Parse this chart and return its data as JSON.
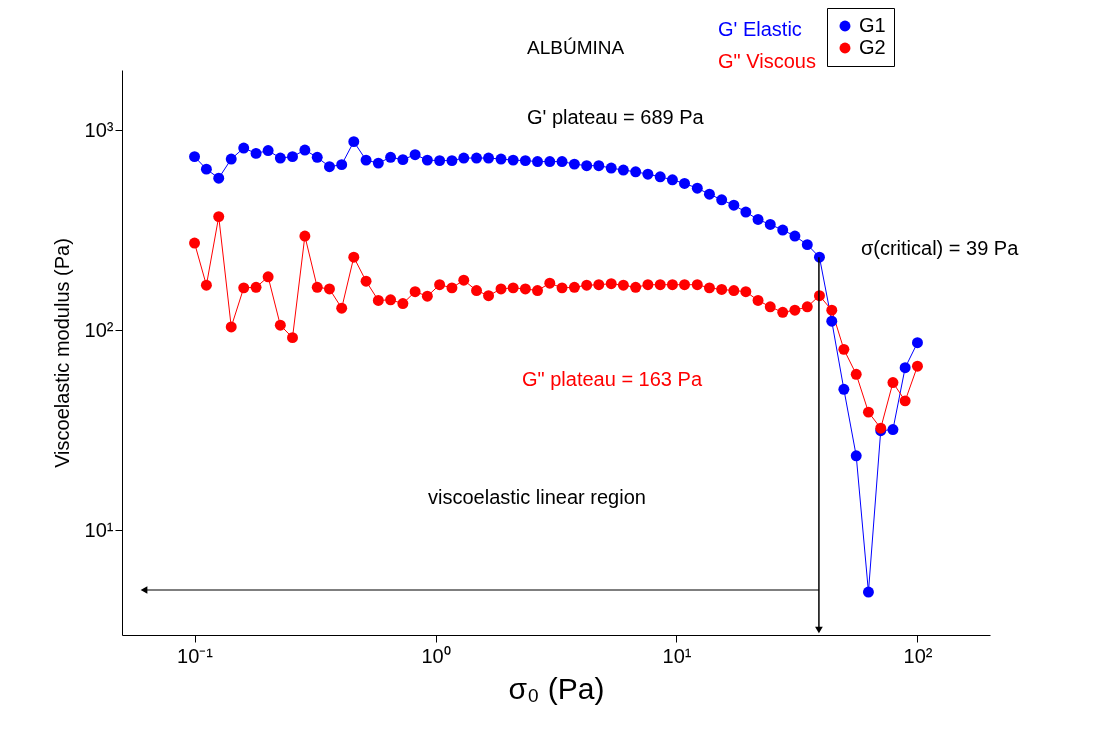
{
  "chart_data": {
    "type": "line",
    "title": "ALBÚMINA",
    "xlabel": "σ₀ (Pa)",
    "ylabel": "Viscoelastic modulus  (Pa)",
    "log": "xy",
    "grid": false,
    "legend": "top right",
    "marker": "circle",
    "line_style": "solid",
    "xlim": [
      0.05,
      200
    ],
    "ylim": [
      3,
      2000
    ],
    "xticks": [
      {
        "value": 0.1,
        "label": "10⁻¹"
      },
      {
        "value": 1,
        "label": "10⁰"
      },
      {
        "value": 10,
        "label": "10¹"
      },
      {
        "value": 100,
        "label": "10²"
      }
    ],
    "yticks": [
      {
        "value": 10,
        "label": "10¹"
      },
      {
        "value": 100,
        "label": "10²"
      },
      {
        "value": 1000,
        "label": "10³"
      }
    ],
    "x": [
      0.1,
      0.112,
      0.126,
      0.142,
      0.16,
      0.18,
      0.202,
      0.227,
      0.255,
      0.287,
      0.323,
      0.363,
      0.408,
      0.458,
      0.515,
      0.579,
      0.651,
      0.732,
      0.823,
      0.925,
      1.04,
      1.17,
      1.31,
      1.48,
      1.66,
      1.87,
      2.1,
      2.36,
      2.65,
      2.98,
      3.35,
      3.77,
      4.24,
      4.76,
      5.36,
      6.02,
      6.77,
      7.61,
      8.56,
      9.62,
      10.8,
      12.2,
      13.7,
      15.4,
      17.3,
      19.4,
      21.8,
      24.5,
      27.6,
      31,
      34.9,
      39.2,
      44.1,
      49.5,
      55.7,
      62.6,
      70.4,
      79.1,
      88.9,
      100
    ],
    "series": [
      {
        "name": "G1",
        "color": "#0000ff",
        "values": [
          738,
          639,
          576,
          718,
          815,
          766,
          791,
          726,
          738,
          796,
          732,
          657,
          673,
          877,
          709,
          685,
          732,
          713,
          755,
          709,
          705,
          705,
          726,
          726,
          726,
          718,
          709,
          705,
          697,
          697,
          697,
          677,
          665,
          665,
          647,
          632,
          620,
          603,
          585,
          565,
          542,
          513,
          479,
          449,
          422,
          390,
          358,
          338,
          317,
          296,
          268,
          232,
          111,
          50.7,
          23.6,
          4.92,
          31.5,
          31.9,
          65,
          86.7
        ]
      },
      {
        "name": "G2",
        "color": "#ff0000",
        "values": [
          273,
          168,
          370,
          104,
          163,
          164,
          185,
          106,
          91.9,
          296,
          164,
          161,
          129,
          232,
          176,
          141,
          142,
          136,
          156,
          148,
          169,
          163,
          178,
          158,
          149,
          161,
          163,
          161,
          158,
          172,
          163,
          164,
          168,
          169,
          171,
          168,
          164,
          169,
          169,
          169,
          169,
          169,
          163,
          160,
          158,
          156,
          141,
          131,
          123,
          126,
          131,
          149,
          126,
          80.3,
          60.3,
          39,
          32.4,
          54.8,
          44.4,
          66.2
        ]
      }
    ],
    "annotations": [
      "G' Elastic",
      "G\" Viscous",
      "G' plateau =  689 Pa",
      {
        "text": "σ(critical) = 39 Pa",
        "x": 39,
        "y": 232
      },
      "G\" plateau = 163 Pa",
      "viscoelastic linear region"
    ]
  }
}
